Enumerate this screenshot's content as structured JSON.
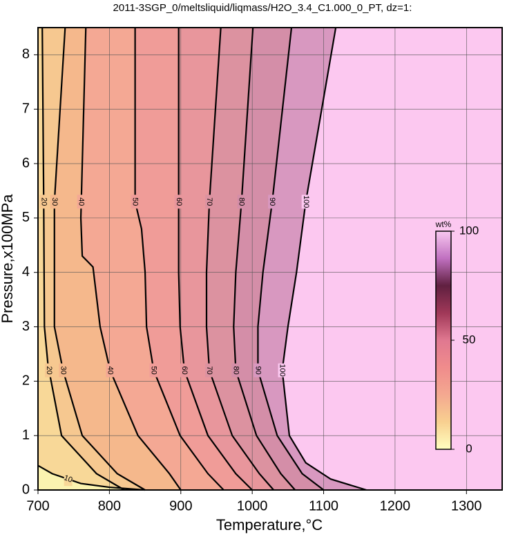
{
  "chart_data": {
    "type": "contour",
    "title": "2011-3SGP_0/meltsliquid/liqmass/H2O_3.4_C1.000_0_PT, dz=1:",
    "x_label": "Temperature,°C",
    "y_label": "Pressure,x100MPa",
    "xlim": [
      700,
      1350
    ],
    "ylim": [
      0,
      8.5
    ],
    "xticks": [
      700,
      800,
      900,
      1000,
      1100,
      1200,
      1300
    ],
    "yticks": [
      0,
      1,
      2,
      3,
      4,
      5,
      6,
      7,
      8
    ],
    "grid": true,
    "background": "#fbf3b0",
    "contours": [
      {
        "level": 10,
        "fill": "#f8d898",
        "x": [
          700,
          720,
          760,
          800,
          850
        ],
        "y": [
          0.45,
          0.3,
          0.12,
          0.05,
          0
        ]
      },
      {
        "level": 20,
        "fill": "#f6c890",
        "x": [
          706,
          708,
          709,
          714,
          733,
          782,
          821
        ],
        "y": [
          8.5,
          5.3,
          3,
          2.3,
          1,
          0.3,
          0
        ]
      },
      {
        "level": 30,
        "fill": "#f5b88c",
        "x": [
          738,
          723,
          723,
          735,
          762,
          811,
          850
        ],
        "y": [
          8.5,
          5.3,
          3,
          2.2,
          1,
          0.3,
          0
        ]
      },
      {
        "level": 40,
        "fill": "#f4a894",
        "x": [
          767,
          762,
          760,
          762,
          777,
          787,
          801,
          840,
          884,
          900
        ],
        "y": [
          8.5,
          6,
          5,
          4.3,
          4.1,
          3,
          2.2,
          1,
          0.3,
          0
        ]
      },
      {
        "level": 50,
        "fill": "#f09c98",
        "x": [
          836,
          836,
          845,
          850,
          852,
          862,
          899,
          938,
          960
        ],
        "y": [
          8.5,
          5.3,
          4.8,
          4,
          3,
          2.2,
          1,
          0.3,
          0
        ]
      },
      {
        "level": 60,
        "fill": "#e8969c",
        "x": [
          897,
          897,
          897,
          899,
          905,
          938,
          977,
          1000
        ],
        "y": [
          8.5,
          5.3,
          4,
          3,
          2.2,
          1,
          0.3,
          0
        ]
      },
      {
        "level": 70,
        "fill": "#dc92a0",
        "x": [
          956,
          940,
          936,
          936,
          940,
          972,
          1010,
          1030
        ],
        "y": [
          8.5,
          5.3,
          4,
          3,
          2.2,
          1,
          0.3,
          0
        ]
      },
      {
        "level": 80,
        "fill": "#d48ea8",
        "x": [
          1001,
          985,
          977,
          974,
          977,
          1006,
          1040,
          1060
        ],
        "y": [
          8.5,
          5.3,
          4,
          3,
          2.2,
          1,
          0.3,
          0
        ]
      },
      {
        "level": 90,
        "fill": "#d898c0",
        "x": [
          1055,
          1028,
          1015,
          1008,
          1008,
          1035,
          1070,
          1100
        ],
        "y": [
          8.5,
          5.3,
          4,
          3,
          2.2,
          1,
          0.3,
          0
        ]
      },
      {
        "level": 100,
        "fill": "#fcc8f0",
        "x": [
          1117,
          1075,
          1062,
          1050,
          1042,
          1052,
          1075,
          1110,
          1160
        ],
        "y": [
          8.5,
          5.3,
          4,
          3,
          2.2,
          1,
          0.5,
          0.2,
          0
        ]
      }
    ],
    "colorbar": {
      "label": "wt%",
      "lim": [
        0,
        100
      ],
      "ticks": [
        0,
        50,
        100
      ],
      "stops": [
        "#ffffc0",
        "#f8d090",
        "#f4a890",
        "#f08c8c",
        "#e07890",
        "#a03858",
        "#602040",
        "#c070c0",
        "#f8c8f0"
      ]
    }
  }
}
